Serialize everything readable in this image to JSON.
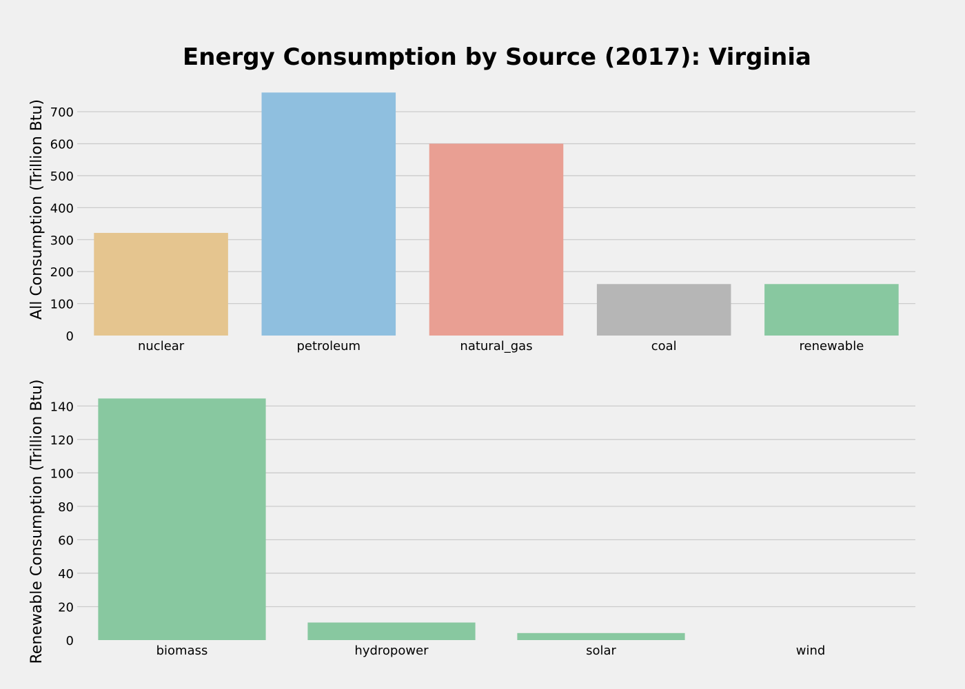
{
  "chart_data": [
    {
      "type": "bar",
      "title": "Energy Consumption by Source (2017): Virginia",
      "xlabel": "",
      "ylabel": "All Consumption (Trillion Btu)",
      "categories": [
        "nuclear",
        "petroleum",
        "natural_gas",
        "coal",
        "renewable"
      ],
      "values": [
        321,
        760,
        600,
        161,
        161
      ],
      "colors": [
        "#e5c58f",
        "#8fbfdf",
        "#e99f93",
        "#b6b6b6",
        "#88c8a0"
      ],
      "ylim": [
        0,
        780
      ],
      "yticks": [
        0,
        100,
        200,
        300,
        400,
        500,
        600,
        700
      ],
      "grid": true
    },
    {
      "type": "bar",
      "title": "",
      "xlabel": "",
      "ylabel": "Renewable Consumption (Trillion Btu)",
      "categories": [
        "biomass",
        "hydropower",
        "solar",
        "wind"
      ],
      "values": [
        144.5,
        10.5,
        4.2,
        0
      ],
      "colors": [
        "#88c8a0",
        "#88c8a0",
        "#88c8a0",
        "#88c8a0"
      ],
      "ylim": [
        0,
        150
      ],
      "yticks": [
        0,
        20,
        40,
        60,
        80,
        100,
        120,
        140
      ],
      "grid": true
    }
  ]
}
